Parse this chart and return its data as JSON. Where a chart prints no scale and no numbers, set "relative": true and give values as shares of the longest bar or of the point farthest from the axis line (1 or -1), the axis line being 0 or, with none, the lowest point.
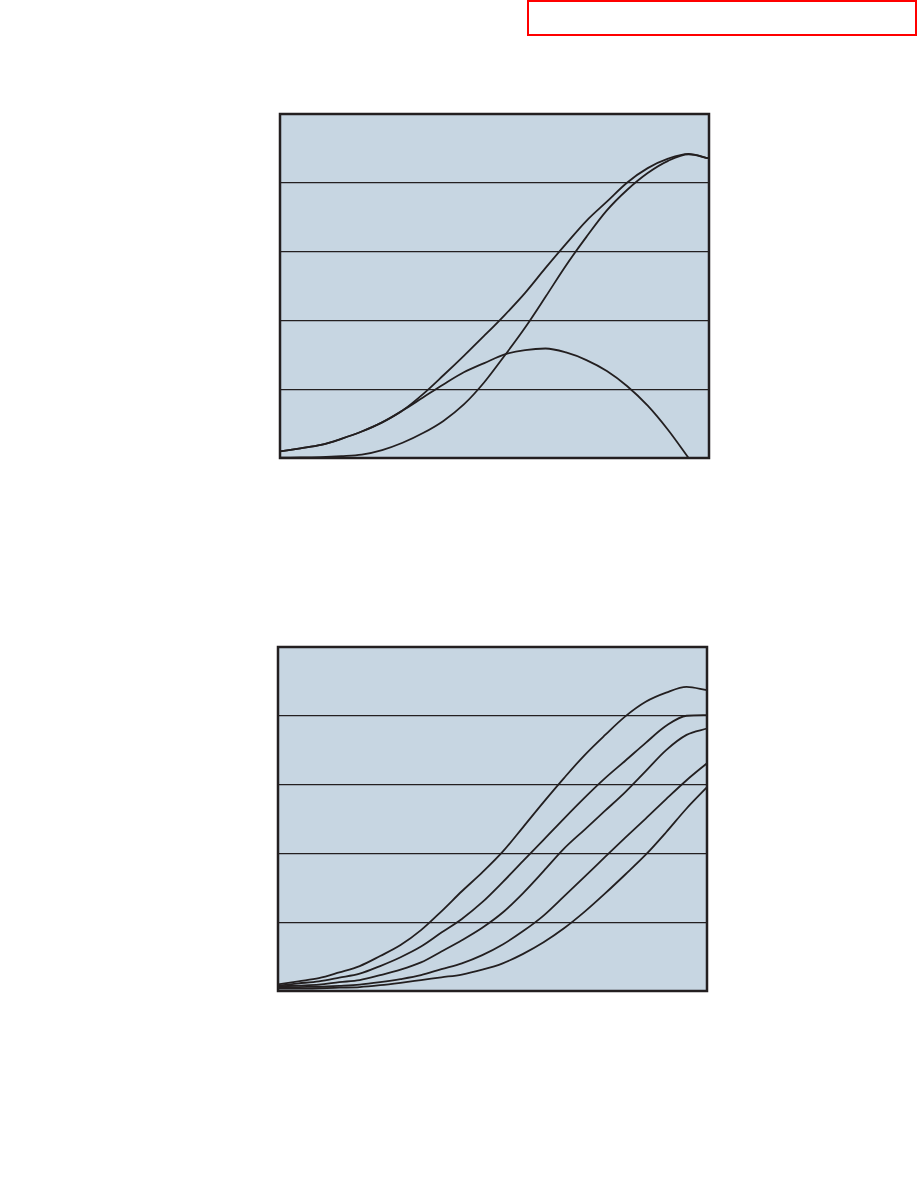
{
  "chart_data": [
    {
      "type": "line",
      "relative": true,
      "tick_labels": false,
      "grid": "y",
      "categories": [
        null,
        null,
        null,
        null,
        null,
        null,
        null,
        null,
        null,
        null,
        null,
        null,
        null,
        null,
        null,
        null,
        null,
        null,
        null,
        null,
        null,
        null
      ],
      "series": [
        {
          "color": "#231f20",
          "values": [
            0.022,
            0.032,
            0.043,
            0.063,
            0.087,
            0.117,
            0.156,
            0.21,
            0.272,
            0.336,
            0.402,
            0.47,
            0.543,
            0.625,
            0.704,
            0.78,
            0.843,
            0.906,
            0.953,
            0.984,
            1.0,
            0.985
          ]
        },
        {
          "color": "#231f20",
          "values": [
            0.001,
            0.002,
            0.003,
            0.006,
            0.011,
            0.026,
            0.05,
            0.082,
            0.122,
            0.176,
            0.249,
            0.337,
            0.429,
            0.53,
            0.633,
            0.727,
            0.814,
            0.882,
            0.937,
            0.977,
            0.998,
            0.985
          ]
        },
        {
          "color": "#231f20",
          "values": [
            0.022,
            0.032,
            0.043,
            0.063,
            0.087,
            0.117,
            0.156,
            0.199,
            0.242,
            0.282,
            0.312,
            0.341,
            0.355,
            0.36,
            0.347,
            0.322,
            0.286,
            0.236,
            0.172,
            0.092,
            0.0,
            null
          ]
        }
      ]
    },
    {
      "type": "line",
      "relative": true,
      "tick_labels": false,
      "grid": "y",
      "categories": [
        null,
        null,
        null,
        null,
        null,
        null,
        null,
        null,
        null,
        null,
        null,
        null,
        null,
        null,
        null,
        null,
        null,
        null,
        null,
        null,
        null,
        null
      ],
      "series": [
        {
          "color": "#231f20",
          "values": [
            0.022,
            0.032,
            0.042,
            0.061,
            0.082,
            0.115,
            0.151,
            0.2,
            0.262,
            0.328,
            0.39,
            0.458,
            0.539,
            0.621,
            0.7,
            0.775,
            0.841,
            0.903,
            0.951,
            0.981,
            1.0,
            0.989
          ]
        },
        {
          "color": "#231f20",
          "values": [
            0.018,
            0.025,
            0.032,
            0.044,
            0.057,
            0.082,
            0.111,
            0.146,
            0.192,
            0.237,
            0.292,
            0.358,
            0.428,
            0.497,
            0.567,
            0.635,
            0.699,
            0.757,
            0.816,
            0.872,
            0.905,
            0.907
          ]
        },
        {
          "color": "#231f20",
          "values": [
            0.015,
            0.018,
            0.021,
            0.029,
            0.036,
            0.052,
            0.07,
            0.094,
            0.13,
            0.167,
            0.208,
            0.258,
            0.322,
            0.394,
            0.468,
            0.53,
            0.592,
            0.654,
            0.723,
            0.792,
            0.842,
            0.863
          ]
        },
        {
          "color": "#231f20",
          "values": [
            0.011,
            0.013,
            0.014,
            0.017,
            0.021,
            0.029,
            0.039,
            0.052,
            0.072,
            0.091,
            0.118,
            0.153,
            0.197,
            0.248,
            0.311,
            0.375,
            0.44,
            0.504,
            0.567,
            0.631,
            0.693,
            0.749
          ]
        },
        {
          "color": "#231f20",
          "values": [
            0.008,
            0.008,
            0.009,
            0.011,
            0.013,
            0.019,
            0.027,
            0.036,
            0.045,
            0.054,
            0.07,
            0.091,
            0.122,
            0.16,
            0.206,
            0.26,
            0.32,
            0.383,
            0.448,
            0.522,
            0.6,
            0.67
          ]
        }
      ]
    }
  ]
}
